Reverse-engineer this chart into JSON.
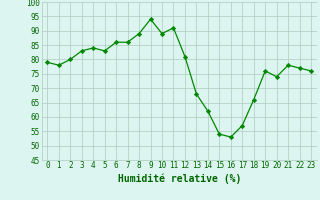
{
  "x": [
    0,
    1,
    2,
    3,
    4,
    5,
    6,
    7,
    8,
    9,
    10,
    11,
    12,
    13,
    14,
    15,
    16,
    17,
    18,
    19,
    20,
    21,
    22,
    23
  ],
  "y": [
    79,
    78,
    80,
    83,
    84,
    83,
    86,
    86,
    89,
    94,
    89,
    91,
    81,
    68,
    62,
    54,
    53,
    57,
    66,
    76,
    74,
    78,
    77,
    76
  ],
  "line_color": "#008800",
  "marker": "D",
  "marker_size": 2.2,
  "bg_color": "#ddf5f0",
  "grid_color": "#aaccbb",
  "xlabel": "Humidité relative (%)",
  "xlabel_color": "#006600",
  "xlabel_fontsize": 7,
  "tick_color": "#006600",
  "tick_fontsize": 5.5,
  "ylim": [
    45,
    100
  ],
  "yticks": [
    45,
    50,
    55,
    60,
    65,
    70,
    75,
    80,
    85,
    90,
    95,
    100
  ],
  "xlim": [
    -0.5,
    23.5
  ]
}
